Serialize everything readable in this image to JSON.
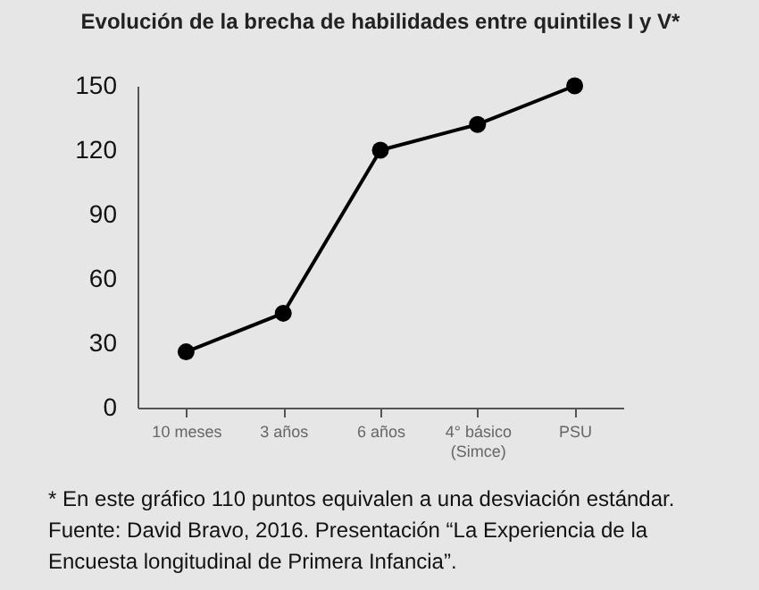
{
  "chart_data": {
    "type": "line",
    "title": "Evolución de la brecha de habilidades entre quintiles I y V*",
    "categories": [
      "10 meses",
      "3 años",
      "6 años",
      "4° básico\n(Simce)",
      "PSU"
    ],
    "values": [
      26,
      44,
      120,
      132,
      150
    ],
    "color": "#000000",
    "marker": "circle",
    "line_style": "solid",
    "grid": false,
    "ylim": [
      0,
      150
    ],
    "yticks": [
      0,
      30,
      60,
      90,
      120,
      150
    ],
    "annotations": [
      "* En este gráfico 110 puntos equivalen a una desviación estándar.",
      "Fuente: David Bravo, 2016. Presentación “La Experiencia de la Encuesta longitudinal de Primera Infancia”."
    ]
  }
}
